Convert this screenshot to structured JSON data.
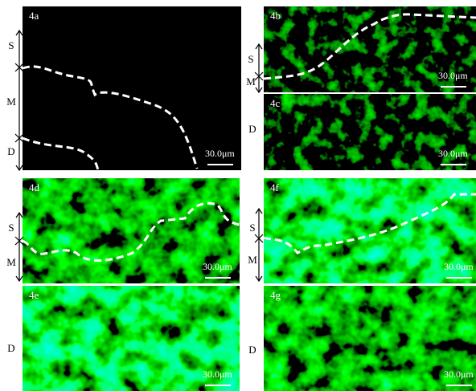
{
  "panels": [
    {
      "label": "4a",
      "scale": "30.0μm",
      "layers": [
        "S",
        "M",
        "D"
      ]
    },
    {
      "label": "4b",
      "scale": "30.0μm",
      "layers": [
        "S",
        "M"
      ]
    },
    {
      "label": "4c",
      "scale": "30.0μm",
      "layers": [
        "D"
      ]
    },
    {
      "label": "4d",
      "scale": "30.0μm",
      "layers": [
        "S",
        "M"
      ]
    },
    {
      "label": "4e",
      "scale": "30.0μm",
      "layers": [
        "D"
      ]
    },
    {
      "label": "4f",
      "scale": "30.0μm",
      "layers": [
        "S",
        "M"
      ]
    },
    {
      "label": "4g",
      "scale": "30.0μm",
      "layers": [
        "D"
      ]
    }
  ]
}
